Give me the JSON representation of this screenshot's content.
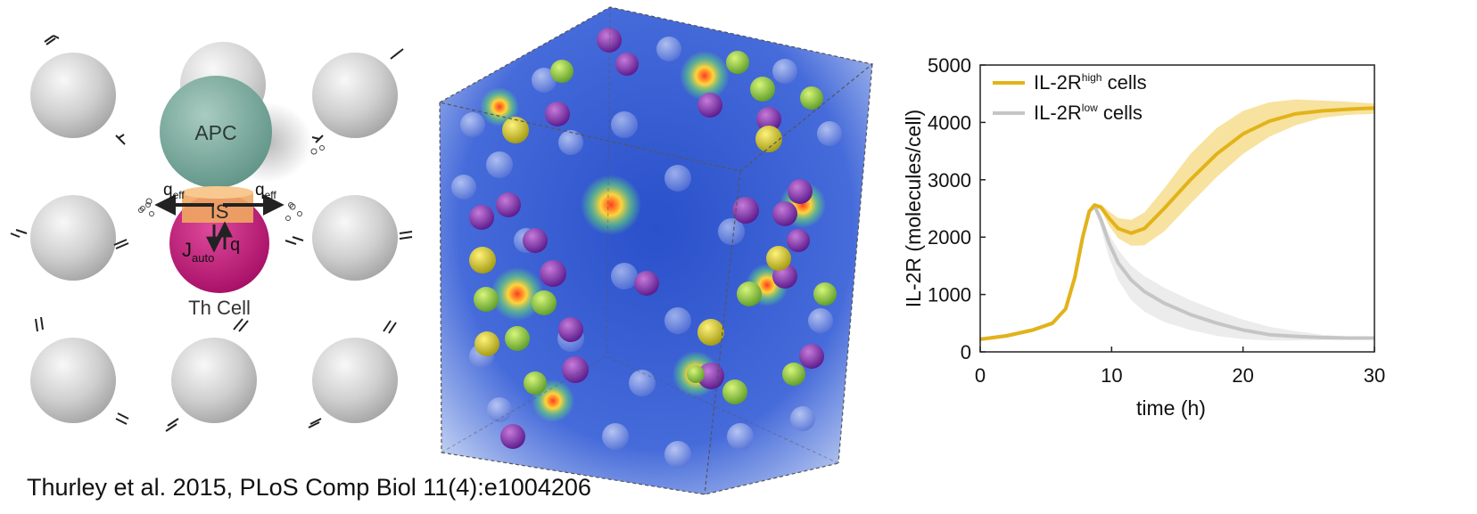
{
  "schematic": {
    "apc_label": "APC",
    "th_cell_label": "Th Cell",
    "synapse_label": "IS",
    "q_eff": "q",
    "q_eff_sub": "eff",
    "q_label": "q",
    "j_auto": "J",
    "j_auto_sub": "auto",
    "colors": {
      "apc": "#76a89c",
      "th_cell": "#c2127a",
      "synapse": "#f0a860",
      "bystander": "#cfcfcf"
    }
  },
  "citation": "Thurley et al. 2015, PLoS Comp Biol 11(4):e1004206",
  "chart_data": {
    "type": "line",
    "xlabel": "time (h)",
    "ylabel": "IL-2R (molecules/cell)",
    "xlim": [
      0,
      30
    ],
    "ylim": [
      0,
      5000
    ],
    "xticks": [
      "0",
      "10",
      "20",
      "30"
    ],
    "yticks": [
      "0",
      "1000",
      "2000",
      "3000",
      "4000",
      "5000"
    ],
    "grid": false,
    "legend_position": "top-left",
    "series": [
      {
        "name": "IL-2R",
        "name_sup": "high",
        "name_suffix": " cells",
        "color": "#e2b319",
        "band_color": "#f6dd8e",
        "x": [
          0,
          2,
          4,
          5.5,
          6.5,
          7.2,
          7.8,
          8.3,
          8.7,
          9.2,
          9.8,
          10.5,
          11.5,
          12.5,
          14,
          16,
          18,
          20,
          22,
          24,
          26,
          28,
          30
        ],
        "y": [
          220,
          280,
          380,
          500,
          750,
          1300,
          2000,
          2450,
          2560,
          2520,
          2330,
          2150,
          2070,
          2150,
          2500,
          3000,
          3450,
          3800,
          4020,
          4150,
          4200,
          4230,
          4250
        ],
        "upper": [
          220,
          280,
          380,
          500,
          750,
          1300,
          2000,
          2450,
          2580,
          2570,
          2450,
          2330,
          2300,
          2430,
          2850,
          3450,
          3900,
          4200,
          4350,
          4400,
          4380,
          4360,
          4330
        ],
        "lower": [
          220,
          280,
          380,
          500,
          750,
          1300,
          2000,
          2450,
          2540,
          2470,
          2200,
          1980,
          1850,
          1860,
          2100,
          2580,
          3050,
          3450,
          3750,
          3950,
          4080,
          4130,
          4150
        ]
      },
      {
        "name": "IL-2R",
        "name_sup": "low",
        "name_suffix": " cells",
        "color": "#c5c5c5",
        "band_color": "#e6e6e6",
        "x": [
          0,
          2,
          4,
          5.5,
          6.5,
          7.2,
          7.8,
          8.3,
          8.7,
          9.2,
          9.8,
          10.5,
          11.5,
          12.5,
          14,
          16,
          18,
          20,
          22,
          24,
          26,
          28,
          30
        ],
        "y": [
          220,
          280,
          380,
          500,
          750,
          1300,
          2000,
          2450,
          2540,
          2300,
          1900,
          1550,
          1250,
          1050,
          850,
          650,
          500,
          380,
          300,
          270,
          250,
          240,
          240
        ],
        "upper": [
          220,
          280,
          380,
          500,
          750,
          1300,
          2000,
          2450,
          2550,
          2380,
          2050,
          1780,
          1500,
          1320,
          1120,
          900,
          720,
          560,
          440,
          360,
          300,
          270,
          260
        ],
        "lower": [
          220,
          280,
          380,
          500,
          750,
          1300,
          2000,
          2450,
          2520,
          2150,
          1650,
          1250,
          900,
          700,
          520,
          380,
          280,
          220,
          200,
          200,
          205,
          210,
          215
        ]
      }
    ]
  }
}
